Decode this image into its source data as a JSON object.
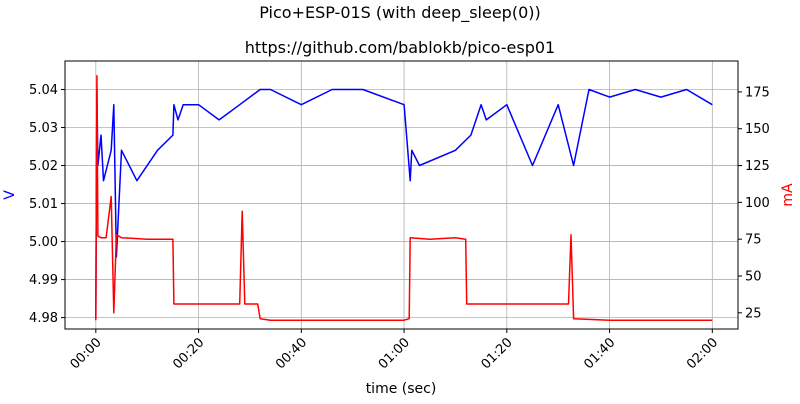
{
  "chart_data": {
    "type": "line",
    "title": "Pico+ESP-01S (with deep_sleep(0))",
    "subtitle": "https://github.com/bablokb/pico-esp01",
    "xlabel": "time (sec)",
    "ylabel_left": "V",
    "ylabel_right": "mA",
    "xlim": [
      -6,
      125
    ],
    "x_ticks": [
      0,
      20,
      40,
      60,
      80,
      100,
      120
    ],
    "x_tick_labels": [
      "00:00",
      "00:20",
      "00:40",
      "01:00",
      "01:20",
      "01:40",
      "02:00"
    ],
    "ylim_left": [
      4.977,
      5.0475
    ],
    "y_ticks_left": [
      4.98,
      4.99,
      5.0,
      5.01,
      5.02,
      5.03,
      5.04
    ],
    "y_tick_labels_left": [
      "4.98",
      "4.99",
      "5.00",
      "5.01",
      "5.02",
      "5.03",
      "5.04"
    ],
    "ylim_right": [
      14,
      196
    ],
    "y_ticks_right": [
      25,
      50,
      75,
      100,
      125,
      150,
      175
    ],
    "y_tick_labels_right": [
      "25",
      "50",
      "75",
      "100",
      "125",
      "150",
      "175"
    ],
    "grid": true,
    "series": [
      {
        "name": "V",
        "axis": "left",
        "color": "#0000ff",
        "x": [
          0,
          0.2,
          0.4,
          1,
          1.5,
          3,
          3.5,
          4,
          5,
          8,
          12,
          15,
          15.2,
          16,
          17,
          20,
          24,
          28,
          32,
          34,
          40,
          46,
          52,
          60,
          61.2,
          61.5,
          63,
          70,
          73,
          75,
          76,
          80,
          85,
          90,
          93,
          96,
          100,
          105,
          110,
          115,
          120
        ],
        "y": [
          4.98,
          5.04,
          5.02,
          5.028,
          5.016,
          5.024,
          5.036,
          4.996,
          5.024,
          5.016,
          5.024,
          5.028,
          5.036,
          5.032,
          5.036,
          5.036,
          5.032,
          5.036,
          5.04,
          5.04,
          5.036,
          5.04,
          5.04,
          5.036,
          5.016,
          5.024,
          5.02,
          5.024,
          5.028,
          5.036,
          5.032,
          5.036,
          5.02,
          5.036,
          5.02,
          5.04,
          5.038,
          5.04,
          5.038,
          5.04,
          5.036
        ]
      },
      {
        "name": "mA",
        "axis": "right",
        "color": "#ff0000",
        "x": [
          0,
          0.2,
          0.4,
          1,
          2,
          3,
          3.5,
          4,
          5,
          10,
          15,
          15.2,
          20,
          24,
          28,
          28.5,
          29,
          31.5,
          32,
          34,
          40,
          50,
          60,
          61,
          61.2,
          65,
          70,
          72,
          72.2,
          80,
          88,
          92,
          92.5,
          93,
          100,
          110,
          120
        ],
        "y": [
          20,
          186,
          77,
          76,
          76,
          104,
          25,
          78,
          76,
          75,
          75,
          31,
          31,
          31,
          31,
          94,
          31,
          31,
          21,
          20,
          20,
          20,
          20,
          21,
          76,
          75,
          76,
          75,
          31,
          31,
          31,
          31,
          78,
          21,
          20,
          20,
          20
        ]
      }
    ]
  }
}
